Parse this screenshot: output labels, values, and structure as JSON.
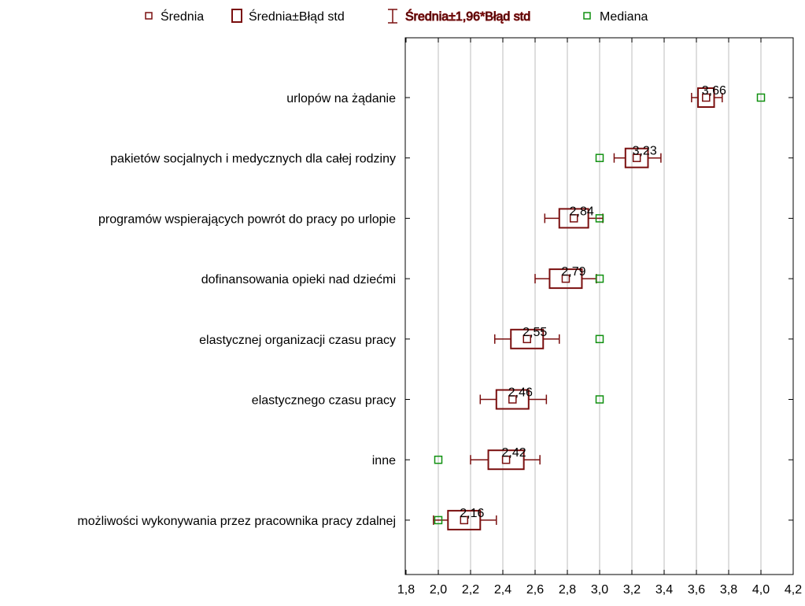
{
  "colors": {
    "mean": "#7a0f0f",
    "se_box": "#7a0f0f",
    "ci_whisker": "#7a0f0f",
    "median": "#109010",
    "grid": "#c8c8c8",
    "axis": "#000000"
  },
  "legend": {
    "mean": "Średnia",
    "se": "Średnia±Błąd std",
    "ci": "Średnia±1,96*Błąd std",
    "median": "Mediana"
  },
  "chart_data": {
    "type": "box-whisker",
    "xlim": [
      1.8,
      4.2
    ],
    "xticks": [
      1.8,
      2.0,
      2.2,
      2.4,
      2.6,
      2.8,
      3.0,
      3.2,
      3.4,
      3.6,
      3.8,
      4.0,
      4.2
    ],
    "xtick_labels": [
      "1,8",
      "2,0",
      "2,2",
      "2,4",
      "2,6",
      "2,8",
      "3,0",
      "3,2",
      "3,4",
      "3,6",
      "3,8",
      "4,0",
      "4,2"
    ],
    "grid": "vertical",
    "legend_position": "top",
    "categories": [
      {
        "label": "urlopów na żądanie",
        "mean": 3.66,
        "mean_label": "3,66",
        "se_low": 3.61,
        "se_high": 3.71,
        "ci_low": 3.57,
        "ci_high": 3.76,
        "median": 4.0
      },
      {
        "label": "pakietów socjalnych i medycznych dla całej rodziny",
        "mean": 3.23,
        "mean_label": "3,23",
        "se_low": 3.16,
        "se_high": 3.3,
        "ci_low": 3.09,
        "ci_high": 3.38,
        "median": 3.0
      },
      {
        "label": "programów wspierających powrót do pracy po urlopie",
        "mean": 2.84,
        "mean_label": "2,84",
        "se_low": 2.75,
        "se_high": 2.93,
        "ci_low": 2.66,
        "ci_high": 3.02,
        "median": 3.0
      },
      {
        "label": "dofinansowania opieki nad dziećmi",
        "mean": 2.79,
        "mean_label": "2,79",
        "se_low": 2.69,
        "se_high": 2.89,
        "ci_low": 2.6,
        "ci_high": 2.98,
        "median": 3.0
      },
      {
        "label": "elastycznej organizacji czasu pracy",
        "mean": 2.55,
        "mean_label": "2,55",
        "se_low": 2.45,
        "se_high": 2.65,
        "ci_low": 2.35,
        "ci_high": 2.75,
        "median": 3.0
      },
      {
        "label": "elastycznego czasu pracy",
        "mean": 2.46,
        "mean_label": "2,46",
        "se_low": 2.36,
        "se_high": 2.56,
        "ci_low": 2.26,
        "ci_high": 2.67,
        "median": 3.0
      },
      {
        "label": "inne",
        "mean": 2.42,
        "mean_label": "2,42",
        "se_low": 2.31,
        "se_high": 2.53,
        "ci_low": 2.2,
        "ci_high": 2.63,
        "median": 2.0
      },
      {
        "label": "możliwości wykonywania przez pracownika pracy zdalnej",
        "mean": 2.16,
        "mean_label": "2,16",
        "se_low": 2.06,
        "se_high": 2.26,
        "ci_low": 1.97,
        "ci_high": 2.36,
        "median": 2.0
      }
    ]
  }
}
